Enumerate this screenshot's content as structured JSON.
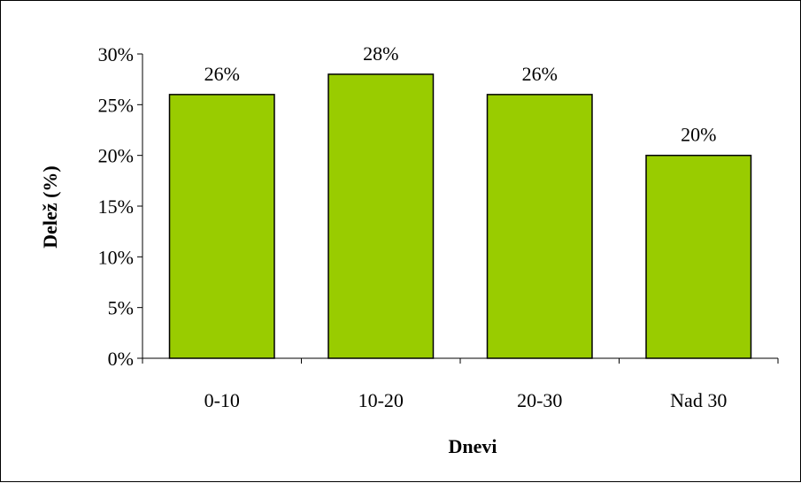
{
  "chart_data": {
    "type": "bar",
    "title": "",
    "xlabel": "Dnevi",
    "ylabel": "Delež (%)",
    "categories": [
      "0-10",
      "10-20",
      "20-30",
      "Nad 30"
    ],
    "values": [
      26,
      28,
      26,
      20
    ],
    "value_labels": [
      "26%",
      "28%",
      "26%",
      "20%"
    ],
    "ylim": [
      0,
      30
    ],
    "yticks": [
      0,
      5,
      10,
      15,
      20,
      25,
      30
    ],
    "ytick_labels": [
      "0%",
      "5%",
      "10%",
      "15%",
      "20%",
      "25%",
      "30%"
    ],
    "grid": false,
    "legend": "none",
    "bar_color": "#99CC00",
    "bar_edge_color": "#000000"
  }
}
